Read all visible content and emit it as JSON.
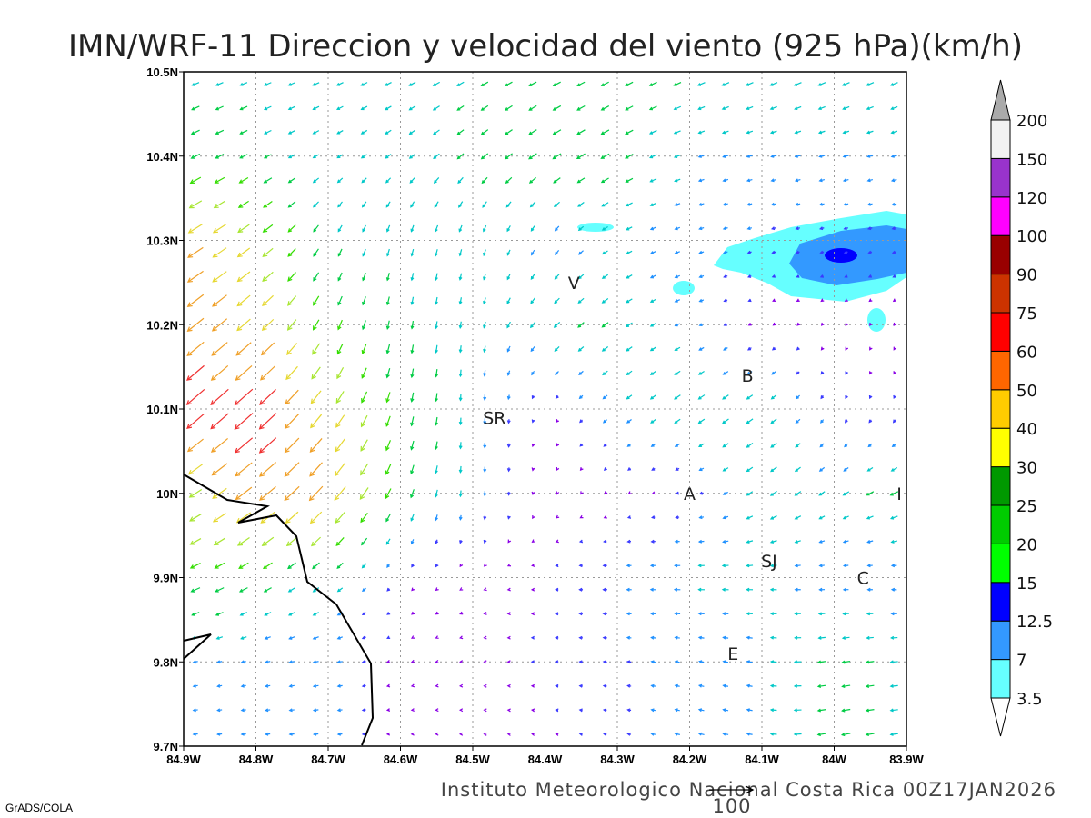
{
  "title": "IMN/WRF-11 Direccion y velocidad del viento (925 hPa)(km/h)",
  "footer": "Instituto Meteorologico Nacional Costa Rica 00Z17JAN2026",
  "credit": "GrADS/COLA",
  "reference_vector": {
    "value": 100,
    "label": "100"
  },
  "chart_data": {
    "type": "vector-field",
    "xlim": [
      -84.9,
      -83.9
    ],
    "ylim": [
      9.7,
      10.5
    ],
    "grid": true,
    "x_ticks": [
      "84.9W",
      "84.8W",
      "84.7W",
      "84.6W",
      "84.5W",
      "84.4W",
      "84.3W",
      "84.2W",
      "84.1W",
      "84W",
      "83.9W"
    ],
    "y_ticks": [
      "10.5N",
      "10.4N",
      "10.3N",
      "10.2N",
      "10.1N",
      "10N",
      "9.9N",
      "9.8N",
      "9.7N"
    ],
    "wind_field": {
      "units": "km/h",
      "lons": [
        -84.9,
        -84.8,
        -84.7,
        -84.6,
        -84.5,
        -84.4,
        -84.3,
        -84.2,
        -84.1,
        -84.0,
        -83.9
      ],
      "lats": [
        10.5,
        10.4,
        10.3,
        10.2,
        10.1,
        10.0,
        9.9,
        9.8,
        9.7
      ],
      "u": [
        [
          -15,
          -15,
          -14,
          -14,
          -15,
          -16,
          -16,
          -16,
          -16,
          -16,
          -16
        ],
        [
          -20,
          -16,
          -12,
          -12,
          -14,
          -18,
          -18,
          -12,
          -12,
          -12,
          -12
        ],
        [
          -35,
          -25,
          -8,
          -4,
          -4,
          -6,
          -12,
          -10,
          -8,
          -8,
          -8
        ],
        [
          -38,
          -28,
          -10,
          -3,
          -2,
          -12,
          -14,
          -10,
          -3,
          -2,
          -2
        ],
        [
          -40,
          -42,
          -20,
          -5,
          0,
          -2,
          -10,
          -14,
          -14,
          -3,
          -2
        ],
        [
          -25,
          -38,
          -28,
          -8,
          0,
          -1,
          -2,
          -6,
          -14,
          -12,
          -18
        ],
        [
          -22,
          -18,
          -12,
          -3,
          -2,
          -5,
          -10,
          -14,
          -14,
          -10,
          -10
        ],
        [
          -10,
          -10,
          -12,
          -3,
          -2,
          -6,
          -8,
          -10,
          -12,
          -18,
          -16
        ],
        [
          -10,
          -10,
          -10,
          -4,
          -2,
          -4,
          -6,
          -12,
          -12,
          -20,
          -16
        ]
      ],
      "v": [
        [
          -6,
          -6,
          -6,
          -7,
          -8,
          -8,
          -8,
          -7,
          -7,
          -7,
          -7
        ],
        [
          -10,
          -8,
          -7,
          -9,
          -12,
          -12,
          -10,
          -4,
          -3,
          -3,
          -3
        ],
        [
          -22,
          -18,
          -15,
          -15,
          -14,
          -10,
          -6,
          -3,
          -2,
          -2,
          -2
        ],
        [
          -30,
          -25,
          -22,
          -18,
          -14,
          -12,
          -10,
          -4,
          -2,
          -3,
          -3
        ],
        [
          -35,
          -38,
          -28,
          -22,
          -14,
          -3,
          -8,
          -10,
          -10,
          -6,
          -5
        ],
        [
          -15,
          -30,
          -32,
          -20,
          -12,
          -3,
          -2,
          -1,
          -10,
          -8,
          -8
        ],
        [
          -10,
          -10,
          -10,
          -4,
          -1,
          0,
          0,
          0,
          0,
          0,
          1
        ],
        [
          -2,
          -2,
          -2,
          -1,
          0,
          0,
          1,
          2,
          2,
          -3,
          -1
        ],
        [
          -1,
          -1,
          -1,
          0,
          0,
          1,
          1,
          3,
          2,
          -4,
          -2
        ]
      ]
    },
    "vector_colors": {
      "thresholds": [
        5,
        9,
        13,
        17,
        22,
        27,
        33,
        40,
        50
      ],
      "colors": [
        "#8a00e6",
        "#3a3aff",
        "#1e90ff",
        "#00c8c8",
        "#00cc44",
        "#33dd00",
        "#a8e632",
        "#e6d832",
        "#f0a028",
        "#f03030"
      ]
    },
    "colorbar": {
      "labels": [
        "3.5",
        "7",
        "12.5",
        "15",
        "20",
        "25",
        "30",
        "40",
        "50",
        "60",
        "75",
        "90",
        "100",
        "120",
        "150",
        "200"
      ],
      "colors": [
        "#66ffff",
        "#3399ff",
        "#0000ff",
        "#00ff00",
        "#00cc00",
        "#009900",
        "#ffff00",
        "#ffcc00",
        "#ff6600",
        "#ff0000",
        "#cc3300",
        "#990000",
        "#ff00ff",
        "#9933cc",
        "#f2f2f2"
      ],
      "over_color": "#aaaaaa",
      "under_color": "#ffffff"
    },
    "place_labels": [
      {
        "text": "V",
        "lon": -84.36,
        "lat": 10.25
      },
      {
        "text": "B",
        "lon": -84.12,
        "lat": 10.14
      },
      {
        "text": "SR",
        "lon": -84.47,
        "lat": 10.09
      },
      {
        "text": "A",
        "lon": -84.2,
        "lat": 10.0
      },
      {
        "text": "I",
        "lon": -83.91,
        "lat": 10.0
      },
      {
        "text": "SJ",
        "lon": -84.09,
        "lat": 9.92
      },
      {
        "text": "C",
        "lon": -83.96,
        "lat": 9.9
      },
      {
        "text": "E",
        "lon": -84.14,
        "lat": 9.81
      }
    ]
  }
}
